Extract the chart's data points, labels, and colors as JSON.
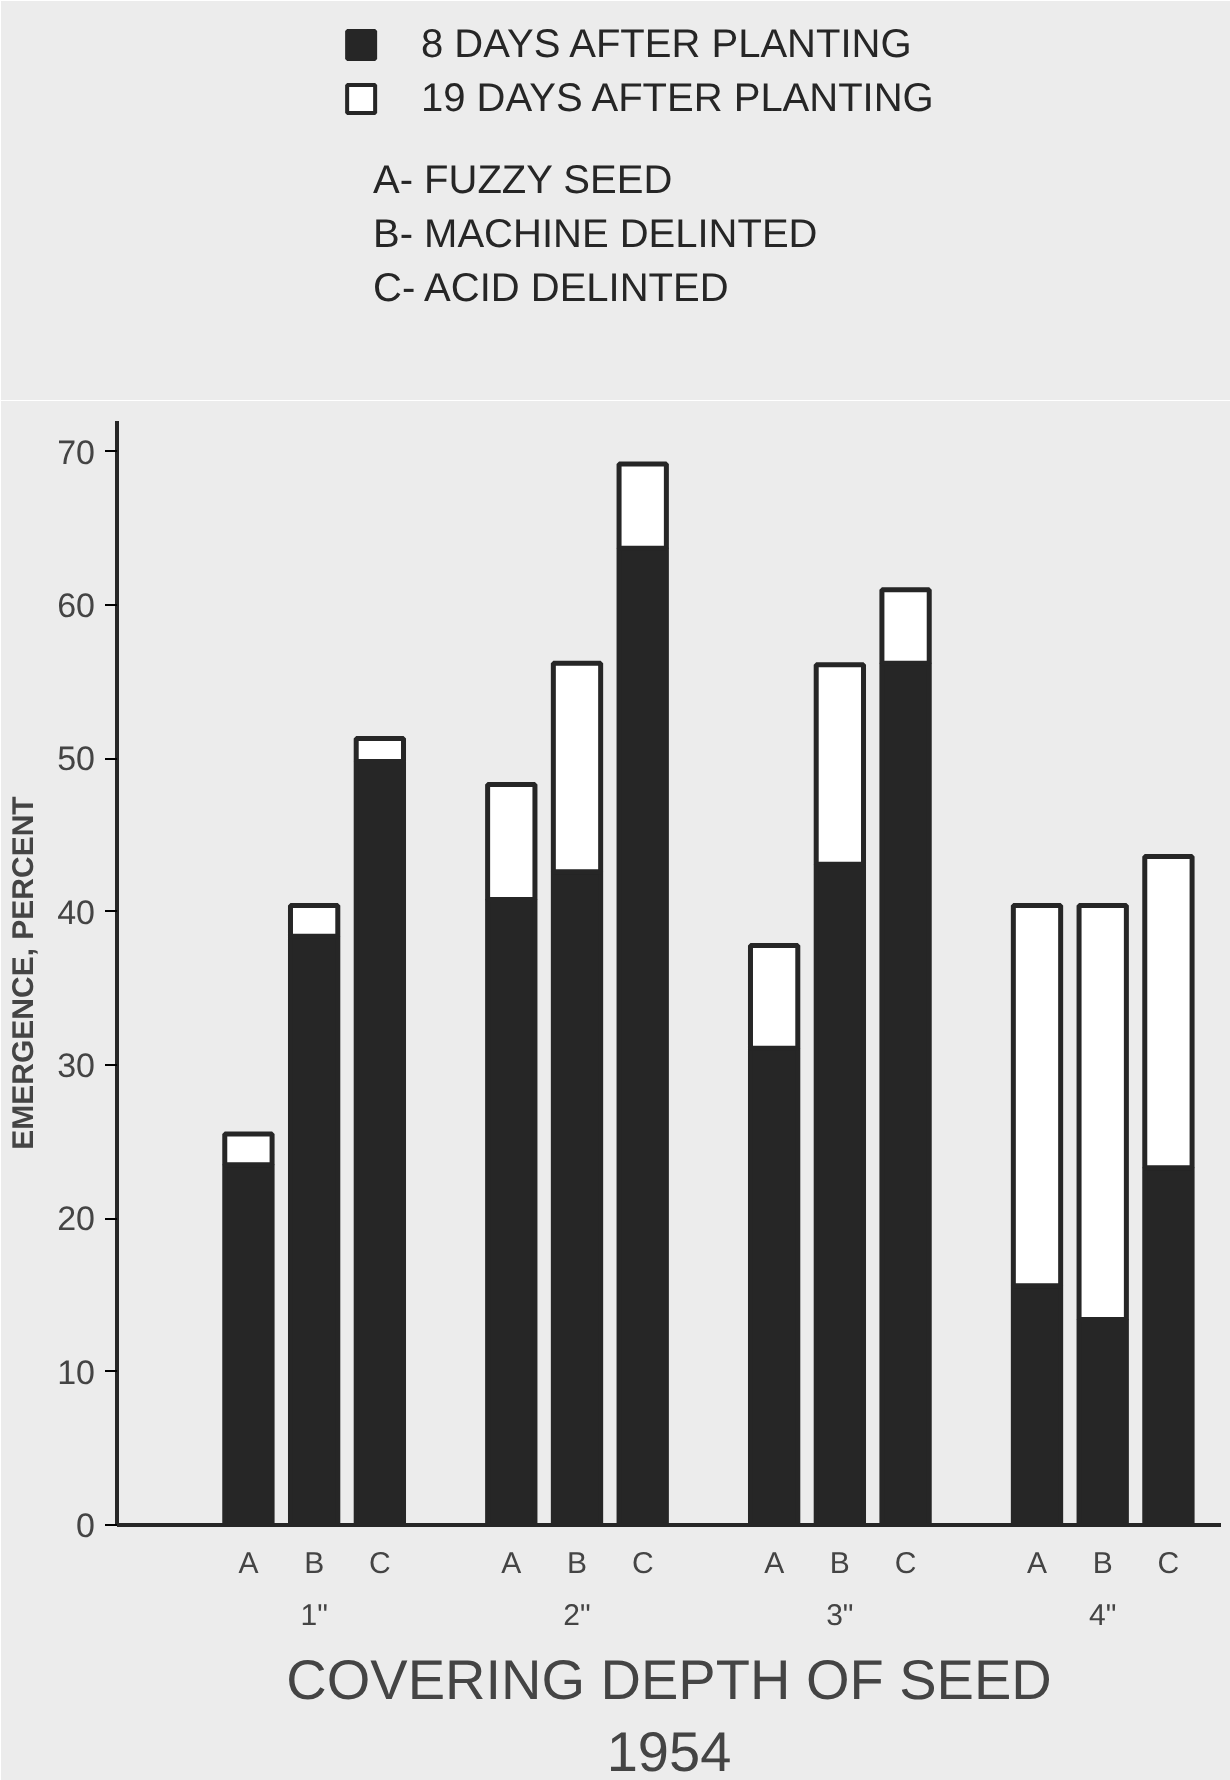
{
  "chart_data": {
    "type": "bar",
    "stacked": true,
    "subtitle": "1954",
    "xlabel": "COVERING DEPTH OF SEED",
    "ylabel": "EMERGENCE, PERCENT",
    "categories": [
      "A",
      "B",
      "C",
      "A",
      "B",
      "C",
      "A",
      "B",
      "C",
      "A",
      "B",
      "C"
    ],
    "series": [
      {
        "name": "8   DAYS AFTER PLANTING",
        "color": "#262626",
        "values": [
          23.5,
          38.4,
          49.8,
          40.8,
          42.6,
          63.7,
          31.1,
          43.1,
          56.2,
          15.6,
          13.4,
          23.3
        ]
      },
      {
        "name": "19   DAYS AFTER PLANTING",
        "color": "#ffffff",
        "values": [
          2,
          2,
          1.5,
          7.5,
          13.6,
          5.5,
          6.7,
          13,
          4.8,
          24.8,
          27,
          20.3
        ]
      }
    ],
    "annotations": [
      "1\"",
      "2\"",
      "3\"",
      "4\"",
      "A- FUZZY SEED",
      "B- MACHINE DELINTED",
      "C- ACID DELINTED"
    ],
    "ylim": [
      0,
      72
    ],
    "yticks": [
      0,
      10,
      20,
      30,
      40,
      50,
      60,
      70
    ],
    "grid": false,
    "legend": "top"
  }
}
